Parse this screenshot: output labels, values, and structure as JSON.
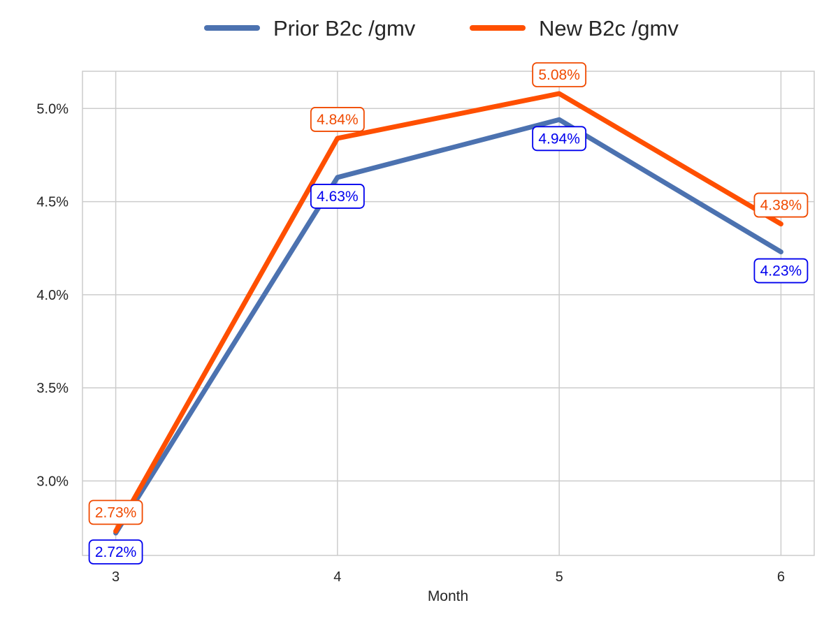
{
  "chart_data": {
    "type": "line",
    "xlabel": "Month",
    "ylabel": "",
    "x": [
      3,
      4,
      5,
      6
    ],
    "xlim": [
      2.85,
      6.15
    ],
    "ylim": [
      2.6,
      5.2
    ],
    "yticks": [
      3.0,
      3.5,
      4.0,
      4.5,
      5.0
    ],
    "ytick_labels": [
      "3.0%",
      "3.5%",
      "4.0%",
      "4.5%",
      "5.0%"
    ],
    "xtick_labels": [
      "3",
      "4",
      "5",
      "6"
    ],
    "grid": true,
    "legend_position": "top-center",
    "series": [
      {
        "name": "Prior B2c /gmv",
        "color": "#4C72B0",
        "label_color": "#0000EE",
        "label_placement": "below",
        "values": [
          2.72,
          4.63,
          4.94,
          4.23
        ],
        "labels": [
          "2.72%",
          "4.63%",
          "4.94%",
          "4.23%"
        ]
      },
      {
        "name": "New B2c /gmv",
        "color": "#FF4F00",
        "label_color": "#F04A00",
        "label_placement": "above",
        "values": [
          2.73,
          4.84,
          5.08,
          4.38
        ],
        "labels": [
          "2.73%",
          "4.84%",
          "5.08%",
          "4.38%"
        ]
      }
    ]
  }
}
